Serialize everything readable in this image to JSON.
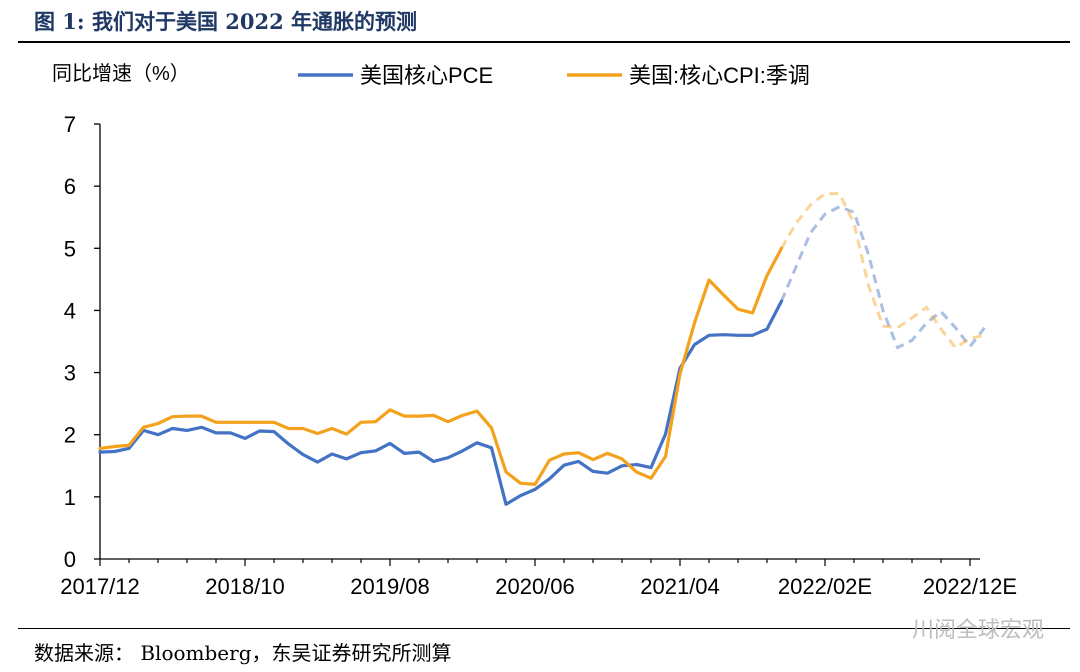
{
  "figure": {
    "title": "图 1:  我们对于美国 2022 年通胀的预测",
    "source": "数据来源： Bloomberg，东吴证券研究所测算",
    "watermark": "川阅全球宏观"
  },
  "colors": {
    "pce": "#4472c4",
    "cpi": "#f4a11d",
    "axis": "#000000"
  },
  "chart_data": {
    "type": "line",
    "ylabel": "同比增速（%）",
    "ylim": [
      0,
      7
    ],
    "yticks": [
      0,
      1,
      2,
      3,
      4,
      5,
      6,
      7
    ],
    "xticks": [
      "2017/12",
      "2018/10",
      "2019/08",
      "2020/06",
      "2021/04",
      "2022/02E",
      "2022/12E"
    ],
    "x_start": "2017-12",
    "x_end": "2022-12",
    "grid": false,
    "legend": "top",
    "series": [
      {
        "name": "美国核心PCE",
        "color": "#4472c4",
        "actual": [
          [
            "2017-12",
            1.72
          ],
          [
            "2018-01",
            1.73
          ],
          [
            "2018-02",
            1.78
          ],
          [
            "2018-03",
            2.07
          ],
          [
            "2018-04",
            2.0
          ],
          [
            "2018-05",
            2.1
          ],
          [
            "2018-06",
            2.07
          ],
          [
            "2018-07",
            2.12
          ],
          [
            "2018-08",
            2.03
          ],
          [
            "2018-09",
            2.03
          ],
          [
            "2018-10",
            1.94
          ],
          [
            "2018-11",
            2.06
          ],
          [
            "2018-12",
            2.05
          ],
          [
            "2019-01",
            1.85
          ],
          [
            "2019-02",
            1.68
          ],
          [
            "2019-03",
            1.56
          ],
          [
            "2019-04",
            1.69
          ],
          [
            "2019-05",
            1.61
          ],
          [
            "2019-06",
            1.71
          ],
          [
            "2019-07",
            1.74
          ],
          [
            "2019-08",
            1.86
          ],
          [
            "2019-09",
            1.7
          ],
          [
            "2019-10",
            1.72
          ],
          [
            "2019-11",
            1.57
          ],
          [
            "2019-12",
            1.63
          ],
          [
            "2020-01",
            1.74
          ],
          [
            "2020-02",
            1.87
          ],
          [
            "2020-03",
            1.79
          ],
          [
            "2020-04",
            0.88
          ],
          [
            "2020-05",
            1.02
          ],
          [
            "2020-06",
            1.12
          ],
          [
            "2020-07",
            1.29
          ],
          [
            "2020-08",
            1.51
          ],
          [
            "2020-09",
            1.57
          ],
          [
            "2020-10",
            1.41
          ],
          [
            "2020-11",
            1.38
          ],
          [
            "2020-12",
            1.5
          ],
          [
            "2021-01",
            1.52
          ],
          [
            "2021-02",
            1.47
          ],
          [
            "2021-03",
            2.01
          ],
          [
            "2021-04",
            3.07
          ],
          [
            "2021-05",
            3.45
          ],
          [
            "2021-06",
            3.6
          ],
          [
            "2021-07",
            3.61
          ],
          [
            "2021-08",
            3.6
          ],
          [
            "2021-09",
            3.6
          ],
          [
            "2021-10",
            3.7
          ],
          [
            "2021-11",
            4.15
          ]
        ],
        "forecast": [
          [
            "2021-11",
            4.15
          ],
          [
            "2021-12",
            4.7
          ],
          [
            "2022-01",
            5.25
          ],
          [
            "2022-02",
            5.55
          ],
          [
            "2022-03",
            5.67
          ],
          [
            "2022-04",
            5.58
          ],
          [
            "2022-05",
            4.9
          ],
          [
            "2022-06",
            4.0
          ],
          [
            "2022-07",
            3.4
          ],
          [
            "2022-08",
            3.52
          ],
          [
            "2022-09",
            3.8
          ],
          [
            "2022-10",
            3.98
          ],
          [
            "2022-11",
            3.72
          ],
          [
            "2022-12",
            3.42
          ],
          [
            "2023-01",
            3.72
          ]
        ]
      },
      {
        "name": "美国:核心CPI:季调",
        "color": "#f4a11d",
        "actual": [
          [
            "2017-12",
            1.78
          ],
          [
            "2018-01",
            1.81
          ],
          [
            "2018-02",
            1.83
          ],
          [
            "2018-03",
            2.12
          ],
          [
            "2018-04",
            2.18
          ],
          [
            "2018-05",
            2.29
          ],
          [
            "2018-06",
            2.3
          ],
          [
            "2018-07",
            2.3
          ],
          [
            "2018-08",
            2.2
          ],
          [
            "2018-09",
            2.2
          ],
          [
            "2018-10",
            2.2
          ],
          [
            "2018-11",
            2.2
          ],
          [
            "2018-12",
            2.2
          ],
          [
            "2019-01",
            2.1
          ],
          [
            "2019-02",
            2.1
          ],
          [
            "2019-03",
            2.02
          ],
          [
            "2019-04",
            2.1
          ],
          [
            "2019-05",
            2.01
          ],
          [
            "2019-06",
            2.2
          ],
          [
            "2019-07",
            2.21
          ],
          [
            "2019-08",
            2.4
          ],
          [
            "2019-09",
            2.3
          ],
          [
            "2019-10",
            2.3
          ],
          [
            "2019-11",
            2.31
          ],
          [
            "2019-12",
            2.21
          ],
          [
            "2020-01",
            2.31
          ],
          [
            "2020-02",
            2.38
          ],
          [
            "2020-03",
            2.11
          ],
          [
            "2020-04",
            1.4
          ],
          [
            "2020-05",
            1.22
          ],
          [
            "2020-06",
            1.2
          ],
          [
            "2020-07",
            1.59
          ],
          [
            "2020-08",
            1.69
          ],
          [
            "2020-09",
            1.71
          ],
          [
            "2020-10",
            1.6
          ],
          [
            "2020-11",
            1.7
          ],
          [
            "2020-12",
            1.61
          ],
          [
            "2021-01",
            1.4
          ],
          [
            "2021-02",
            1.3
          ],
          [
            "2021-03",
            1.65
          ],
          [
            "2021-04",
            2.98
          ],
          [
            "2021-05",
            3.8
          ],
          [
            "2021-06",
            4.49
          ],
          [
            "2021-07",
            4.25
          ],
          [
            "2021-08",
            4.02
          ],
          [
            "2021-09",
            3.96
          ],
          [
            "2021-10",
            4.56
          ],
          [
            "2021-11",
            5.0
          ]
        ],
        "forecast": [
          [
            "2021-11",
            5.0
          ],
          [
            "2021-12",
            5.4
          ],
          [
            "2022-01",
            5.7
          ],
          [
            "2022-02",
            5.88
          ],
          [
            "2022-03",
            5.88
          ],
          [
            "2022-04",
            5.4
          ],
          [
            "2022-05",
            4.4
          ],
          [
            "2022-06",
            3.75
          ],
          [
            "2022-07",
            3.72
          ],
          [
            "2022-08",
            3.88
          ],
          [
            "2022-09",
            4.05
          ],
          [
            "2022-10",
            3.7
          ],
          [
            "2022-11",
            3.4
          ],
          [
            "2022-12",
            3.55
          ],
          [
            "2023-01",
            3.6
          ]
        ]
      }
    ]
  }
}
